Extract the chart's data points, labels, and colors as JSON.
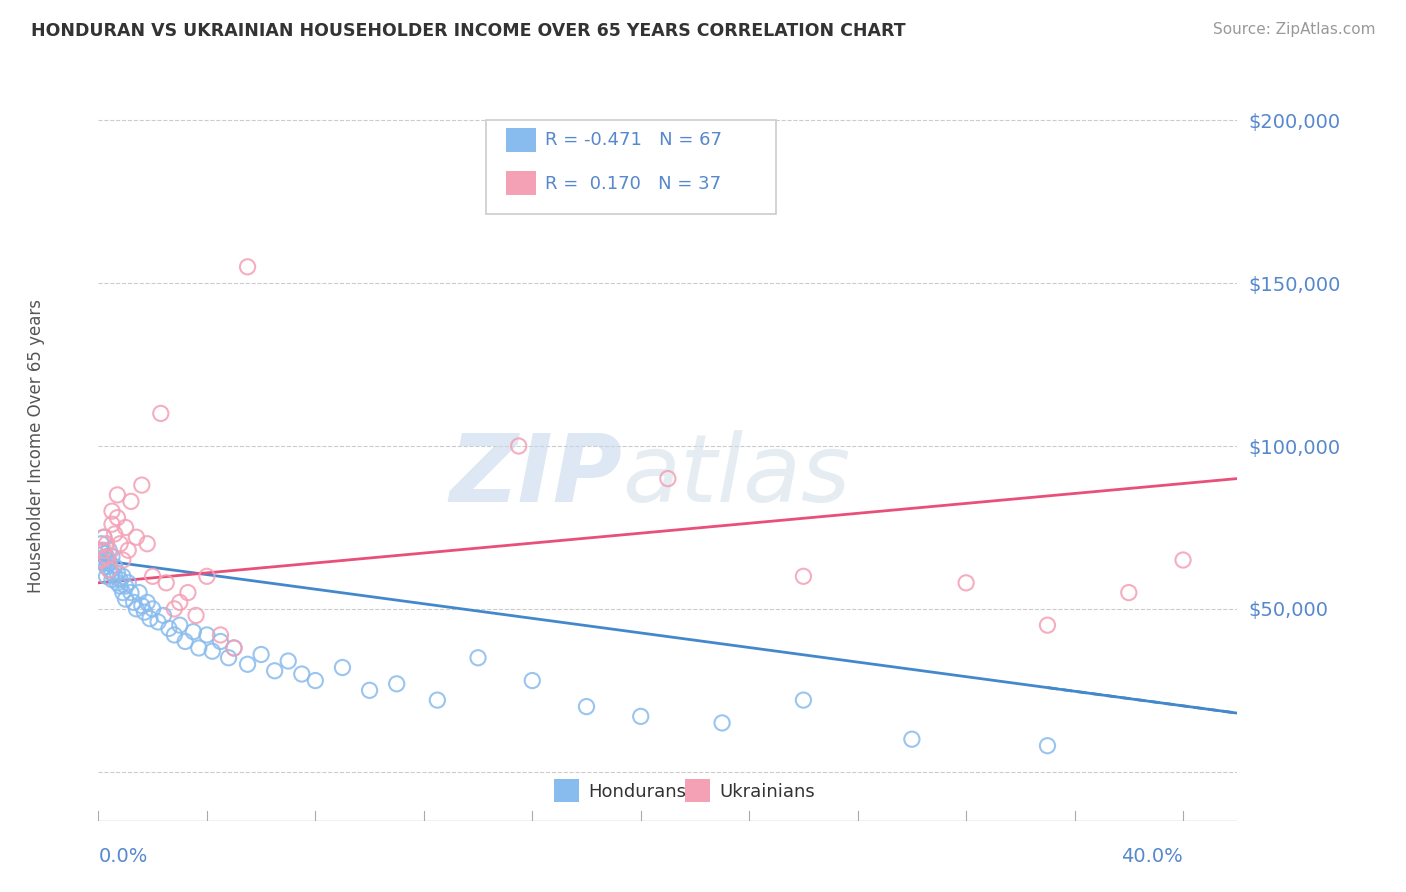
{
  "title": "HONDURAN VS UKRAINIAN HOUSEHOLDER INCOME OVER 65 YEARS CORRELATION CHART",
  "source": "Source: ZipAtlas.com",
  "ylabel": "Householder Income Over 65 years",
  "xlim": [
    0.0,
    0.42
  ],
  "ylim": [
    -15000,
    215000
  ],
  "yticks": [
    0,
    50000,
    100000,
    150000,
    200000
  ],
  "ytick_labels": [
    "",
    "$50,000",
    "$100,000",
    "$150,000",
    "$200,000"
  ],
  "honduran_color": "#88bbee",
  "ukrainian_color": "#f4a0b5",
  "line_honduran_color": "#4488cc",
  "line_ukrainian_color": "#e8507a",
  "background_color": "#ffffff",
  "title_color": "#333333",
  "source_color": "#999999",
  "tick_label_color": "#5588cc",
  "axis_label_color": "#555555",
  "grid_color": "#cccccc",
  "hondurans_x": [
    0.001,
    0.001,
    0.001,
    0.002,
    0.002,
    0.002,
    0.003,
    0.003,
    0.003,
    0.003,
    0.004,
    0.004,
    0.004,
    0.005,
    0.005,
    0.005,
    0.006,
    0.006,
    0.007,
    0.007,
    0.008,
    0.008,
    0.009,
    0.009,
    0.01,
    0.01,
    0.011,
    0.012,
    0.013,
    0.014,
    0.015,
    0.016,
    0.017,
    0.018,
    0.019,
    0.02,
    0.022,
    0.024,
    0.026,
    0.028,
    0.03,
    0.032,
    0.035,
    0.037,
    0.04,
    0.042,
    0.045,
    0.048,
    0.05,
    0.055,
    0.06,
    0.065,
    0.07,
    0.075,
    0.08,
    0.09,
    0.1,
    0.11,
    0.125,
    0.14,
    0.16,
    0.18,
    0.2,
    0.23,
    0.26,
    0.3,
    0.35
  ],
  "hondurans_y": [
    65000,
    70000,
    68000,
    72000,
    67000,
    64000,
    66000,
    63000,
    65000,
    60000,
    62000,
    68000,
    64000,
    61000,
    66000,
    59000,
    63000,
    60000,
    58000,
    61000,
    57000,
    59000,
    55000,
    60000,
    57000,
    53000,
    58000,
    55000,
    52000,
    50000,
    55000,
    51000,
    49000,
    52000,
    47000,
    50000,
    46000,
    48000,
    44000,
    42000,
    45000,
    40000,
    43000,
    38000,
    42000,
    37000,
    40000,
    35000,
    38000,
    33000,
    36000,
    31000,
    34000,
    30000,
    28000,
    32000,
    25000,
    27000,
    22000,
    35000,
    28000,
    20000,
    17000,
    15000,
    22000,
    10000,
    8000
  ],
  "ukrainians_x": [
    0.001,
    0.002,
    0.002,
    0.003,
    0.003,
    0.004,
    0.005,
    0.005,
    0.006,
    0.007,
    0.007,
    0.008,
    0.009,
    0.01,
    0.011,
    0.012,
    0.014,
    0.016,
    0.018,
    0.02,
    0.023,
    0.025,
    0.028,
    0.03,
    0.033,
    0.036,
    0.04,
    0.045,
    0.05,
    0.055,
    0.155,
    0.21,
    0.26,
    0.32,
    0.35,
    0.38,
    0.4
  ],
  "ukrainians_y": [
    65000,
    72000,
    68000,
    70000,
    66000,
    62000,
    80000,
    76000,
    73000,
    85000,
    78000,
    70000,
    65000,
    75000,
    68000,
    83000,
    72000,
    88000,
    70000,
    60000,
    110000,
    58000,
    50000,
    52000,
    55000,
    48000,
    60000,
    42000,
    38000,
    155000,
    100000,
    90000,
    60000,
    58000,
    45000,
    55000,
    65000
  ],
  "line_h_x0": 0.0,
  "line_h_y0": 65000,
  "line_h_x1": 0.42,
  "line_h_y1": 18000,
  "line_u_x0": 0.0,
  "line_u_y0": 58000,
  "line_u_x1": 0.42,
  "line_u_y1": 90000
}
